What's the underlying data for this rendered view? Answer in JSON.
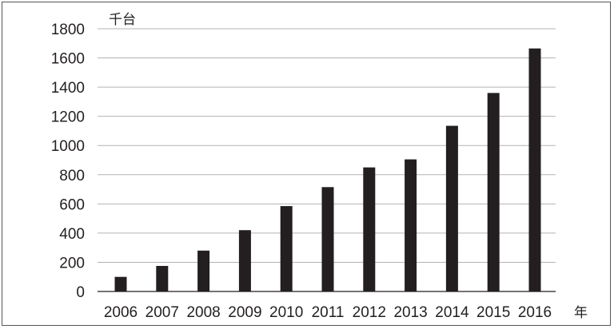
{
  "chart_data": {
    "type": "bar",
    "categories": [
      "2006",
      "2007",
      "2008",
      "2009",
      "2010",
      "2011",
      "2012",
      "2013",
      "2014",
      "2015",
      "2016"
    ],
    "values": [
      100,
      175,
      280,
      420,
      585,
      715,
      850,
      905,
      1135,
      1360,
      1665
    ],
    "ylabel": "千台",
    "xlabel": "年",
    "ylim": [
      0,
      1800
    ],
    "yticks": [
      0,
      200,
      400,
      600,
      800,
      1000,
      1200,
      1400,
      1600,
      1800
    ],
    "grid": true,
    "bar_color": "#231f20",
    "grid_color": "#b3b3b3"
  }
}
